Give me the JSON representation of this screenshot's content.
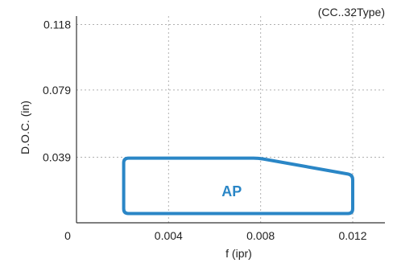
{
  "chart_data": {
    "type": "area",
    "note": "(CC..32Type)",
    "xlabel": "f (ipr)",
    "ylabel": "D.O.C. (in)",
    "x_ticks": [
      {
        "value": 0,
        "label": "0"
      },
      {
        "value": 0.004,
        "label": "0.004"
      },
      {
        "value": 0.008,
        "label": "0.008"
      },
      {
        "value": 0.012,
        "label": "0.012"
      }
    ],
    "y_ticks": [
      {
        "value": 0.039,
        "label": "0.039"
      },
      {
        "value": 0.079,
        "label": "0.079"
      },
      {
        "value": 0.118,
        "label": "0.118"
      }
    ],
    "xlim": [
      0,
      0.0134
    ],
    "ylim": [
      0,
      0.123
    ],
    "grid": true,
    "regions": [
      {
        "label": "AP",
        "color": "#2a86c6",
        "points": [
          {
            "x": 0.00205,
            "y": 0.0055
          },
          {
            "x": 0.00205,
            "y": 0.0385
          },
          {
            "x": 0.0079,
            "y": 0.0385
          },
          {
            "x": 0.012,
            "y": 0.0285
          },
          {
            "x": 0.012,
            "y": 0.0055
          }
        ]
      }
    ]
  }
}
